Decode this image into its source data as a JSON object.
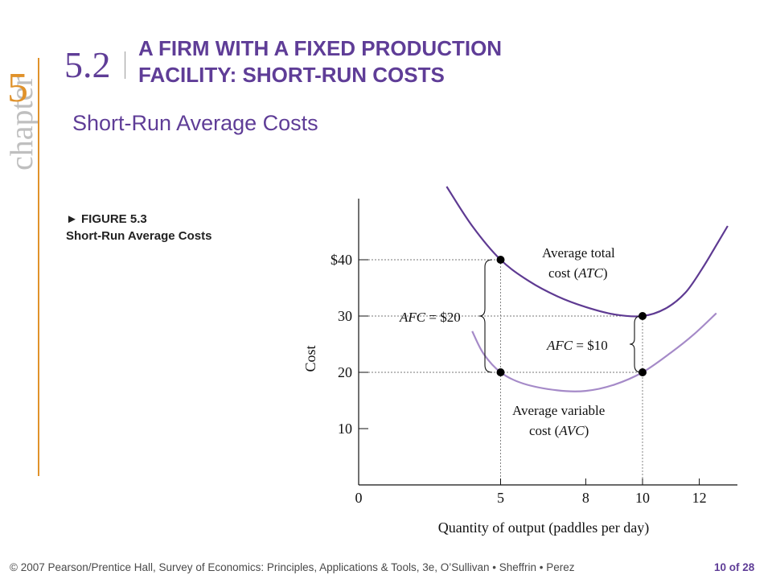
{
  "chapter": {
    "word": "chapter",
    "number": "5"
  },
  "section": {
    "number": "5.2",
    "title_line1": "A FIRM WITH A FIXED PRODUCTION",
    "title_line2": "FACILITY: SHORT-RUN COSTS"
  },
  "subtitle": "Short-Run Average Costs",
  "figure": {
    "number": "► FIGURE 5.3",
    "caption": "Short-Run Average Costs"
  },
  "chart_data": {
    "type": "line",
    "xlabel": "Quantity of output (paddles per day)",
    "ylabel": "Cost",
    "xlim": [
      0,
      13.5
    ],
    "ylim": [
      0,
      54
    ],
    "x_ticks": [
      "0",
      "5",
      "8",
      "10",
      "12"
    ],
    "y_ticks": [
      "10",
      "20",
      "30",
      "$40"
    ],
    "series": [
      {
        "key": "ATC",
        "color": "#5e3a92",
        "points": [
          [
            3.1,
            53
          ],
          [
            4,
            46
          ],
          [
            5,
            40
          ],
          [
            6,
            36.2
          ],
          [
            7,
            33.5
          ],
          [
            8,
            31.6
          ],
          [
            9,
            30.3
          ],
          [
            10,
            30
          ],
          [
            10.8,
            31.3
          ],
          [
            11.5,
            34.1
          ],
          [
            12.1,
            38.4
          ],
          [
            12.6,
            42.6
          ],
          [
            13,
            46
          ]
        ]
      },
      {
        "key": "AVC",
        "color": "#a58ac8",
        "points": [
          [
            4,
            27.3
          ],
          [
            4.4,
            23.3
          ],
          [
            5,
            20
          ],
          [
            5.8,
            18
          ],
          [
            7,
            16.8
          ],
          [
            8,
            16.7
          ],
          [
            9,
            17.8
          ],
          [
            10,
            20
          ],
          [
            11,
            23.5
          ],
          [
            11.8,
            26.7
          ],
          [
            12.6,
            30.5
          ]
        ]
      }
    ],
    "points": [
      {
        "x": 5,
        "y": 40
      },
      {
        "x": 10,
        "y": 30
      },
      {
        "x": 5,
        "y": 20
      },
      {
        "x": 10,
        "y": 20
      }
    ],
    "annotations": {
      "atc_line1": "Average total",
      "atc_line2_prefix": "cost (",
      "atc_abbr": "ATC",
      "atc_line2_suffix": ")",
      "avc_line1": "Average variable",
      "avc_line2_prefix": "cost (",
      "avc_abbr": "AVC",
      "avc_line2_suffix": ")",
      "afc_left_var": "AFC",
      "afc_left_val": " = $20",
      "afc_right_var": "AFC",
      "afc_right_val": " = $10"
    }
  },
  "footer": "© 2007 Pearson/Prentice Hall, Survey of Economics: Principles, Applications & Tools, 3e, O’Sullivan • Sheffrin • Perez",
  "page_indicator": "10 of 28"
}
